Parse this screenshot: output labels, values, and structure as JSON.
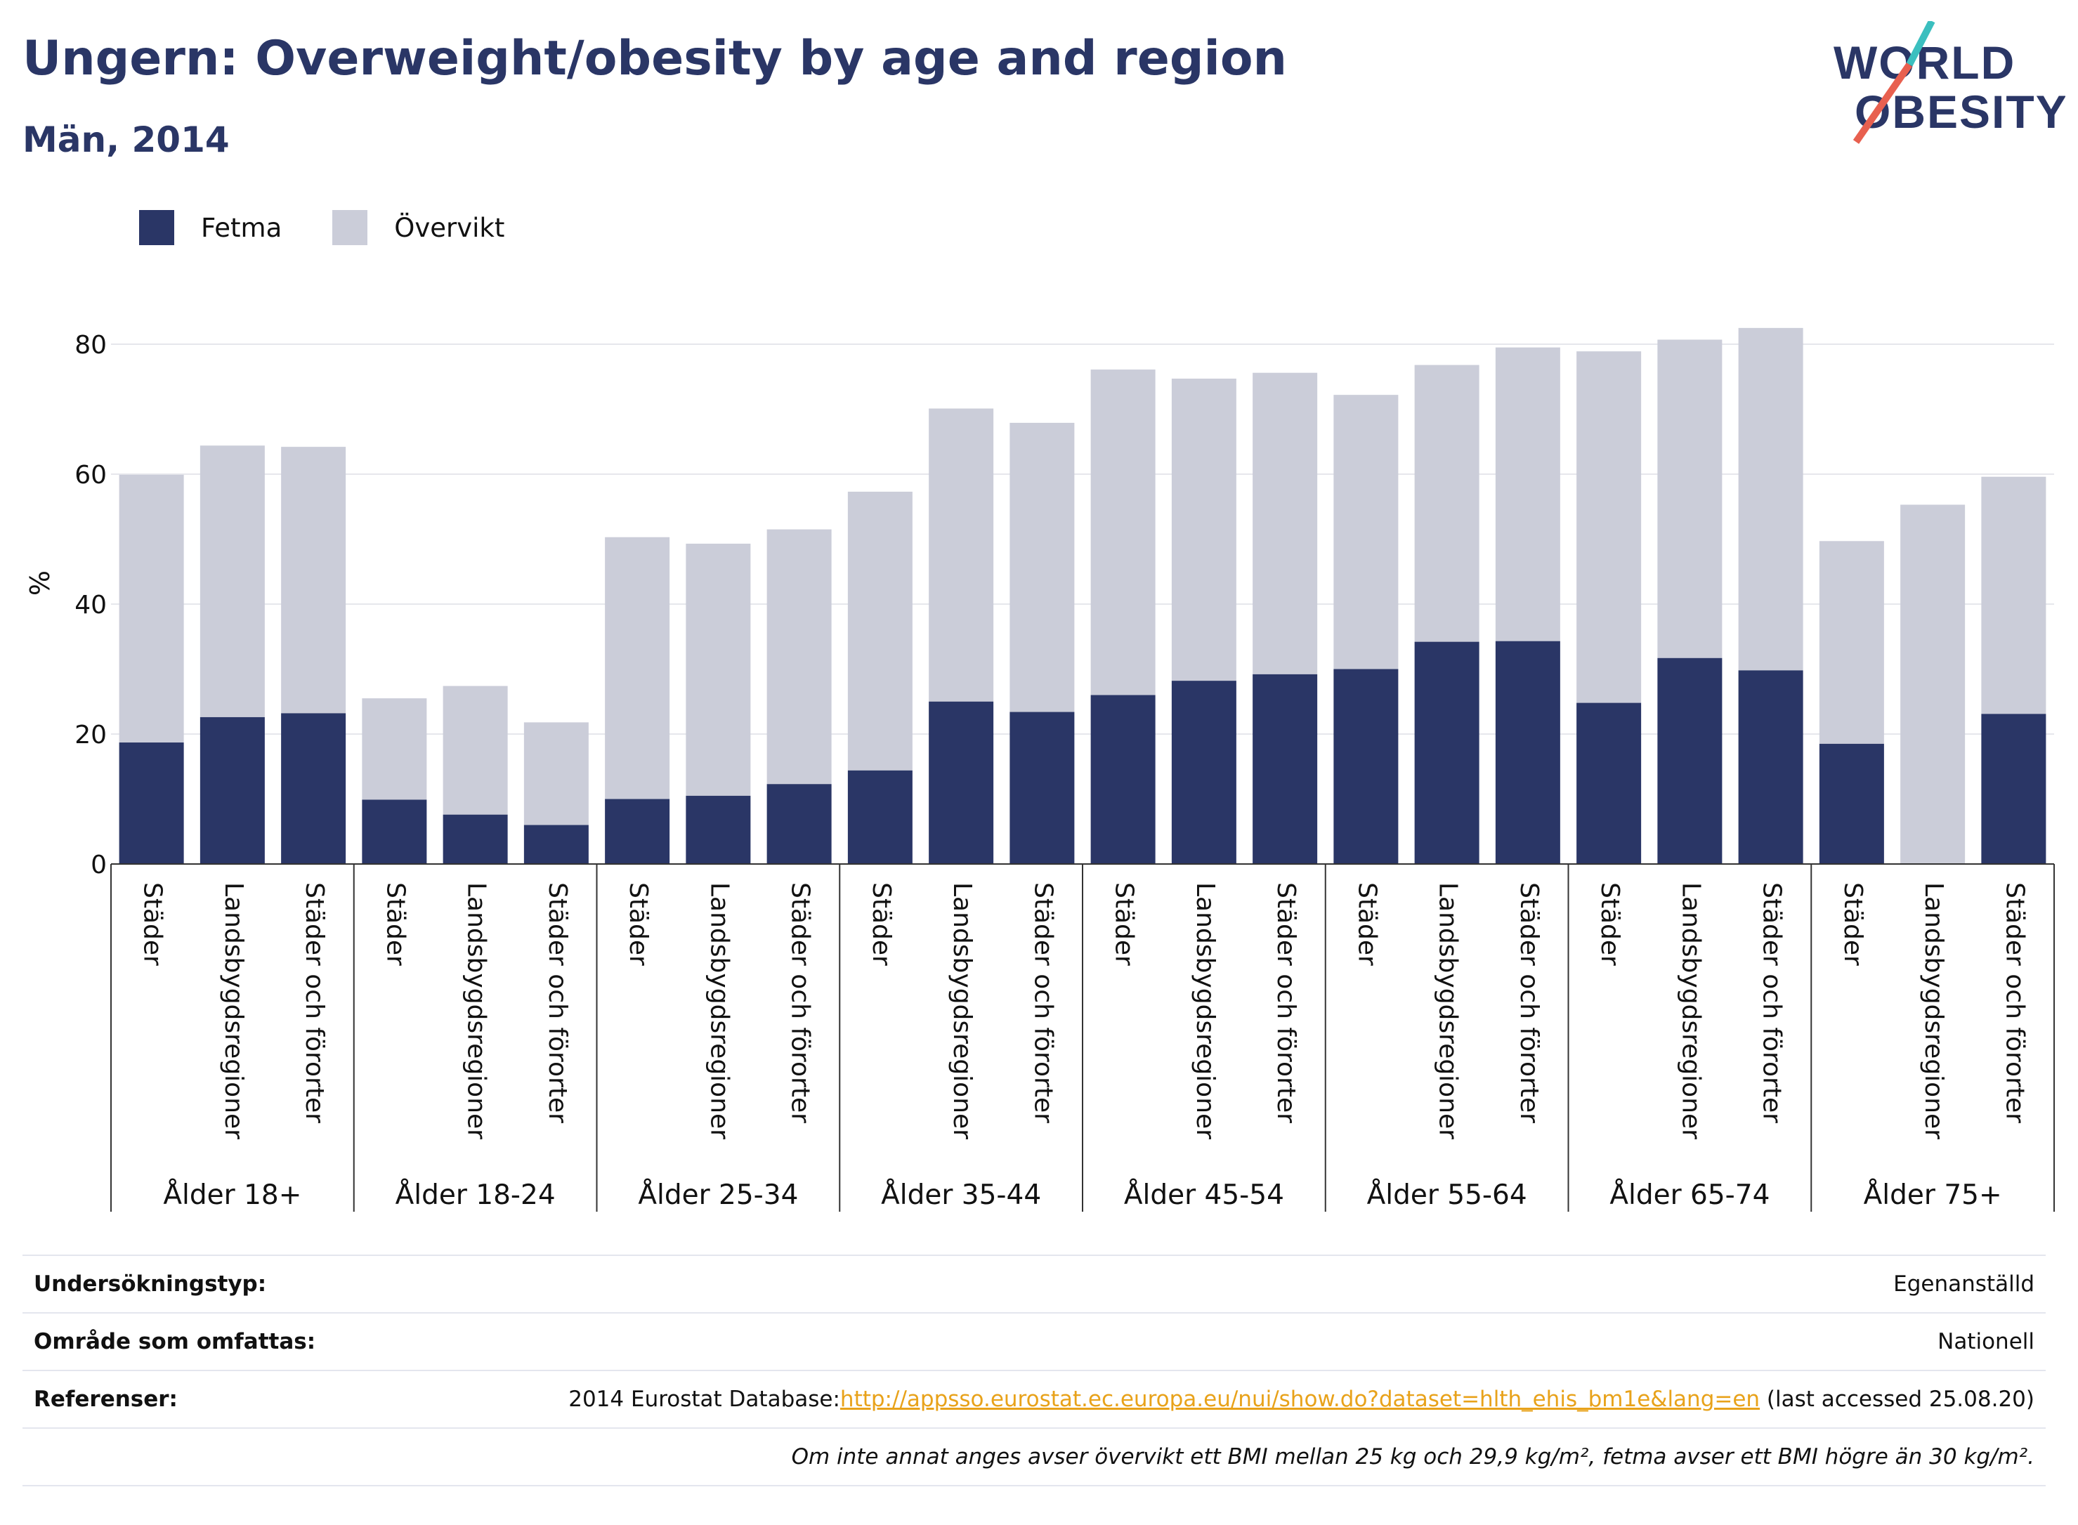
{
  "header": {
    "title": "Ungern: Overweight/obesity by age and region",
    "subtitle": "Män, 2014"
  },
  "logo": {
    "line1": "WORLD",
    "line2": "OBESITY",
    "icon": "world-obesity-logo"
  },
  "colors": {
    "fetma": "#2a3666",
    "overvikt": "#cbcdd9",
    "grid": "#e6e7ec",
    "axis": "#333333",
    "link": "#e8a21a",
    "brand_teal": "#3bbfbf",
    "brand_red": "#e8604f"
  },
  "chart_data": {
    "type": "bar",
    "stacked": true,
    "title": "Ungern: Overweight/obesity by age and region",
    "subtitle": "Män, 2014",
    "ylabel": "%",
    "ylim": [
      0,
      85
    ],
    "yticks": [
      0,
      20,
      40,
      60,
      80
    ],
    "grid": true,
    "legend_position": "top-left",
    "groups": [
      {
        "label": "Ålder 18+",
        "categories": [
          "Städer",
          "Landsbygdsregioner",
          "Städer och förorter"
        ]
      },
      {
        "label": "Ålder 18-24",
        "categories": [
          "Städer",
          "Landsbygdsregioner",
          "Städer och förorter"
        ]
      },
      {
        "label": "Ålder 25-34",
        "categories": [
          "Städer",
          "Landsbygdsregioner",
          "Städer och förorter"
        ]
      },
      {
        "label": "Ålder 35-44",
        "categories": [
          "Städer",
          "Landsbygdsregioner",
          "Städer och förorter"
        ]
      },
      {
        "label": "Ålder 45-54",
        "categories": [
          "Städer",
          "Landsbygdsregioner",
          "Städer och förorter"
        ]
      },
      {
        "label": "Ålder 55-64",
        "categories": [
          "Städer",
          "Landsbygdsregioner",
          "Städer och förorter"
        ]
      },
      {
        "label": "Ålder 65-74",
        "categories": [
          "Städer",
          "Landsbygdsregioner",
          "Städer och förorter"
        ]
      },
      {
        "label": "Ålder 75+",
        "categories": [
          "Städer",
          "Landsbygdsregioner",
          "Städer och förorter"
        ]
      }
    ],
    "series": [
      {
        "name": "Fetma",
        "values": [
          18.7,
          22.6,
          23.2,
          9.9,
          7.6,
          6.0,
          10.0,
          10.5,
          12.3,
          14.4,
          25.0,
          23.4,
          26.0,
          28.2,
          29.2,
          30.0,
          34.2,
          34.3,
          24.8,
          31.7,
          29.8,
          18.5,
          0.0,
          23.1
        ]
      },
      {
        "name": "Övervikt",
        "values": [
          41.2,
          41.8,
          41.0,
          15.6,
          19.8,
          15.8,
          40.3,
          38.8,
          39.2,
          42.9,
          45.1,
          44.5,
          50.1,
          46.5,
          46.4,
          42.2,
          42.6,
          45.2,
          54.1,
          49.0,
          52.7,
          31.2,
          55.3,
          36.5
        ]
      }
    ]
  },
  "info": {
    "survey_label": "Undersökningstyp:",
    "survey_value": "Egenanställd",
    "area_label": "Område som omfattas:",
    "area_value": "Nationell",
    "ref_label": "Referenser:",
    "ref_prefix": "2014 Eurostat Database:",
    "ref_link": "http://appsso.eurostat.ec.europa.eu/nui/show.do?dataset=hlth_ehis_bm1e&lang=en",
    "ref_suffix": " (last accessed 25.08.20)",
    "note": "Om inte annat anges avser övervikt ett BMI mellan 25 kg och 29,9 kg/m², fetma avser ett BMI högre än 30 kg/m²."
  }
}
